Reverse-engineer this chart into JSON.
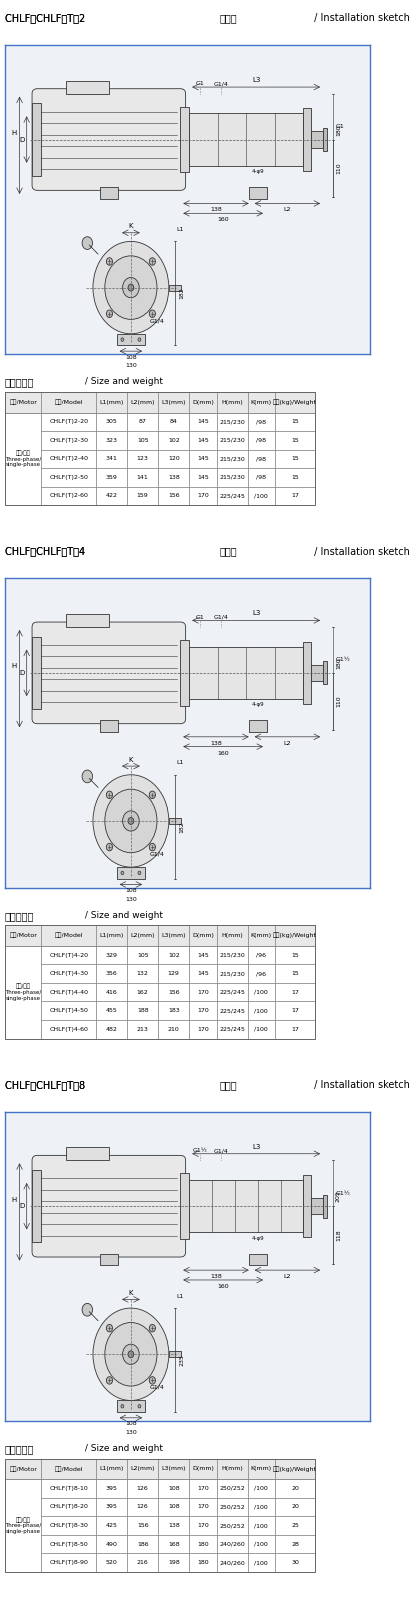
{
  "sections": [
    {
      "title": "CHLF、CHLF（T）2 安装图 / Installation sketch",
      "inlet_label": "G1",
      "top_labels": [
        "G1",
        "G1/4"
      ],
      "side_dims": [
        "180",
        "110"
      ],
      "hole_label": "4-φ9",
      "dim_labels": [
        "138",
        "160",
        "L2",
        "L1",
        "L3",
        "K"
      ],
      "flange_label": "G1/4",
      "flange_dims": [
        "108",
        "130"
      ],
      "flange_h": "182",
      "table_motor": "三相/单相\nThree-phase/\nsingle-phase",
      "table_headers": [
        "电机/Motor",
        "型号/Model",
        "L1(mm)",
        "L2(mm)",
        "L3(mm)",
        "D(mm)",
        "H(mm)",
        "K(mm)",
        "重量(kg)/Weight"
      ],
      "table_rows": [
        [
          "CHLF(T)2-20",
          "305",
          "87",
          "84",
          "145",
          "215/230",
          "/98",
          "15"
        ],
        [
          "CHLF(T)2-30",
          "323",
          "105",
          "102",
          "145",
          "215/230",
          "/98",
          "15"
        ],
        [
          "CHLF(T)2-40",
          "341",
          "123",
          "120",
          "145",
          "215/230",
          "/98",
          "15"
        ],
        [
          "CHLF(T)2-50",
          "359",
          "141",
          "138",
          "145",
          "215/230",
          "/98",
          "15"
        ],
        [
          "CHLF(T)2-60",
          "422",
          "159",
          "156",
          "170",
          "225/245",
          "/100",
          "17"
        ]
      ]
    },
    {
      "title": "CHLF、CHLF（T）4 安装图 / Installation sketch",
      "inlet_label": "G1½",
      "top_labels": [
        "G1",
        "G1/4"
      ],
      "side_dims": [
        "180",
        "110"
      ],
      "hole_label": "4-φ9",
      "dim_labels": [
        "138",
        "160",
        "L2",
        "L1",
        "L3",
        "K"
      ],
      "flange_label": "G1/4",
      "flange_dims": [
        "108",
        "130"
      ],
      "flange_h": "182",
      "table_motor": "三相/单相\nThree-phase/\nsingle-phase",
      "table_headers": [
        "电机/Motor",
        "型号/Model",
        "L1(mm)",
        "L2(mm)",
        "L3(mm)",
        "D(mm)",
        "H(mm)",
        "K(mm)",
        "重量(kg)/Weight"
      ],
      "table_rows": [
        [
          "CHLF(T)4-20",
          "329",
          "105",
          "102",
          "145",
          "215/230",
          "/96",
          "15"
        ],
        [
          "CHLF(T)4-30",
          "356",
          "132",
          "129",
          "145",
          "215/230",
          "/96",
          "15"
        ],
        [
          "CHLF(T)4-40",
          "416",
          "162",
          "156",
          "170",
          "225/245",
          "/100",
          "17"
        ],
        [
          "CHLF(T)4-50",
          "455",
          "188",
          "183",
          "170",
          "225/245",
          "/100",
          "17"
        ],
        [
          "CHLF(T)4-60",
          "482",
          "213",
          "210",
          "170",
          "225/245",
          "/100",
          "17"
        ]
      ]
    },
    {
      "title": "CHLF、CHLF（T）8 安装图 / Installation sketch",
      "inlet_label": "G1½",
      "top_labels": [
        "G1½",
        "G1/4"
      ],
      "side_dims": [
        "205",
        "118"
      ],
      "hole_label": "4-φ9",
      "dim_labels": [
        "138",
        "160",
        "L2",
        "L1",
        "L3",
        "K"
      ],
      "flange_label": "G1/4",
      "flange_dims": [
        "108",
        "130"
      ],
      "flange_h": "235",
      "table_motor": "三相/单相\nThree-phase/\nsingle-phase",
      "table_headers": [
        "电机/Motor",
        "型号/Model",
        "L1(mm)",
        "L2(mm)",
        "L3(mm)",
        "D(mm)",
        "H(mm)",
        "K(mm)",
        "重量(kg)/Weight"
      ],
      "table_rows": [
        [
          "CHLF(T)8-10",
          "395",
          "126",
          "108",
          "170",
          "250/252",
          "/100",
          "20"
        ],
        [
          "CHLF(T)8-20",
          "395",
          "126",
          "108",
          "170",
          "250/252",
          "/100",
          "20"
        ],
        [
          "CHLF(T)8-30",
          "425",
          "156",
          "138",
          "170",
          "250/252",
          "/100",
          "25"
        ],
        [
          "CHLF(T)8-50",
          "490",
          "186",
          "168",
          "180",
          "240/260",
          "/100",
          "28"
        ],
        [
          "CHLF(T)8-90",
          "520",
          "216",
          "198",
          "180",
          "240/260",
          "/100",
          "30"
        ]
      ]
    }
  ],
  "bg_color": "#ffffff",
  "border_color": "#4472c4",
  "line_color": "#333333",
  "text_color": "#000000",
  "title_color": "#000000"
}
